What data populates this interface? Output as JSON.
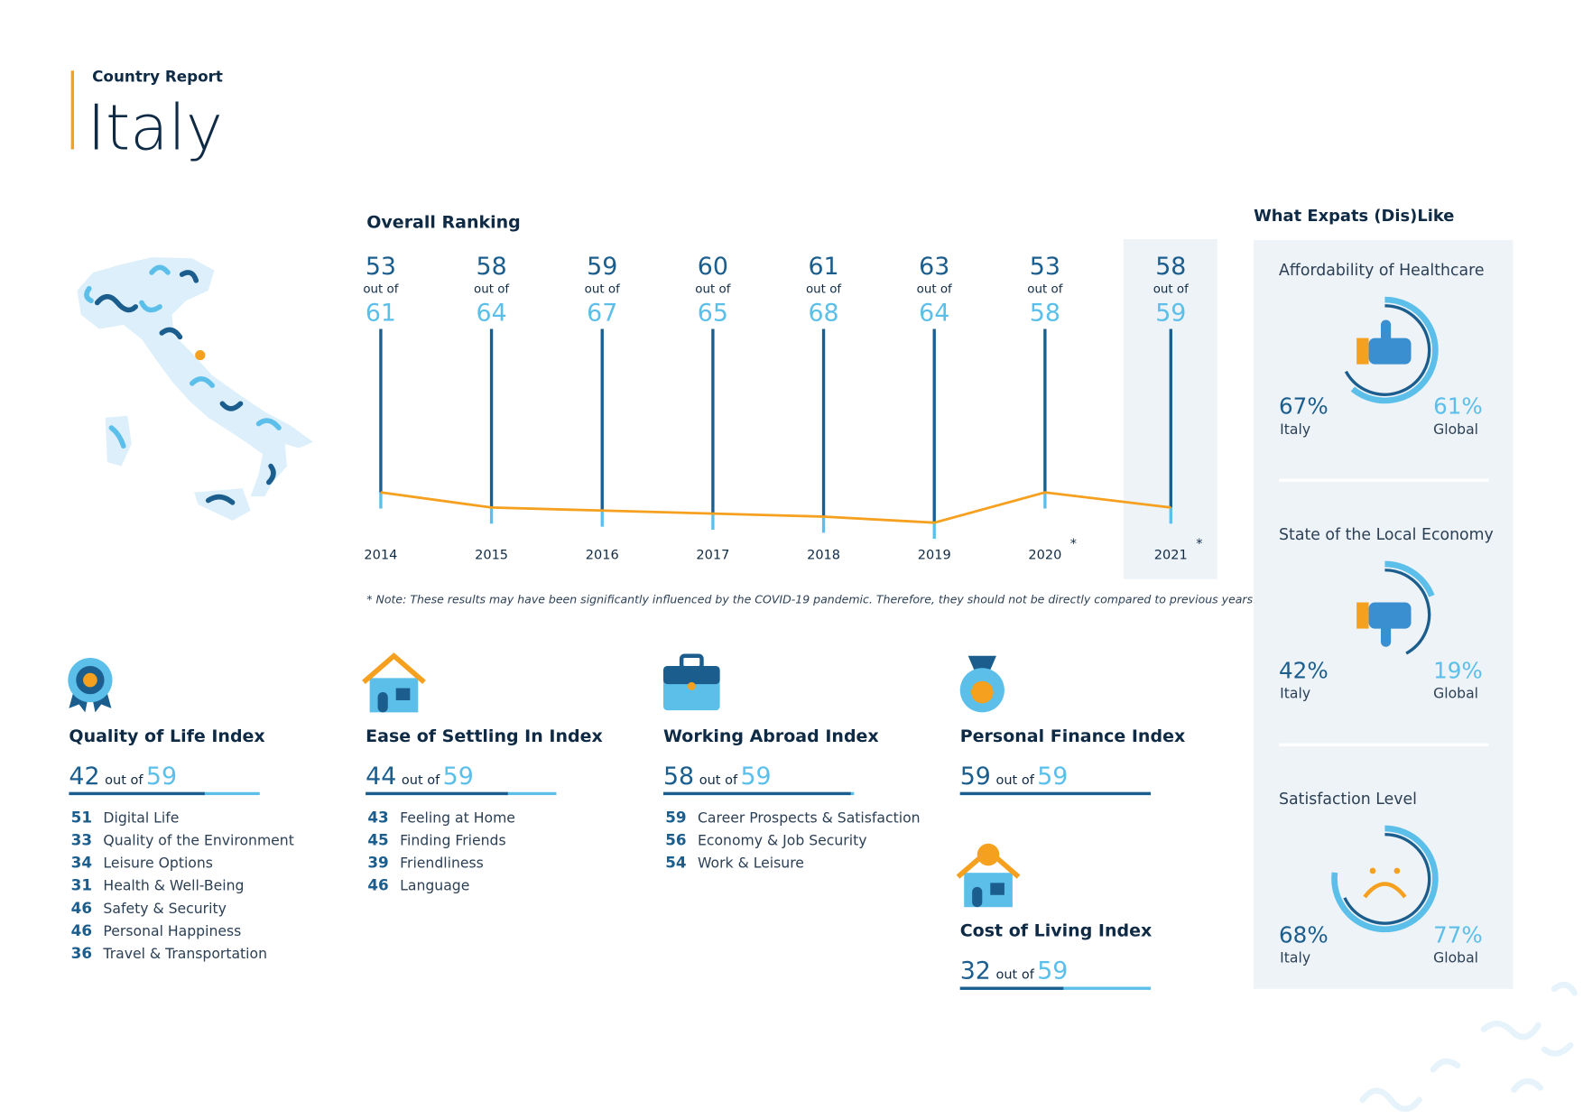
{
  "header": {
    "subtitle": "Country Report",
    "title": "Italy"
  },
  "labels": {
    "out_of": "out of",
    "italy": "Italy",
    "global": "Global"
  },
  "chart_data": {
    "type": "line",
    "title": "Overall Ranking",
    "categories": [
      "2014",
      "2015",
      "2016",
      "2017",
      "2018",
      "2019",
      "2020",
      "2021"
    ],
    "values": [
      53,
      58,
      59,
      60,
      61,
      63,
      53,
      58
    ],
    "totals": [
      61,
      64,
      67,
      65,
      68,
      64,
      58,
      59
    ],
    "markers": [
      null,
      null,
      null,
      null,
      null,
      null,
      "*",
      "*"
    ],
    "color": "#f5a01f",
    "note": "* Note: These results may have been significantly influenced by the COVID-19 pandemic. Therefore, they should not be directly compared to previous years."
  },
  "indices": [
    {
      "title": "Quality of Life Index",
      "rank": 42,
      "total": 59,
      "items": [
        {
          "rank": 51,
          "label": "Digital Life"
        },
        {
          "rank": 33,
          "label": "Quality of the Environment"
        },
        {
          "rank": 34,
          "label": "Leisure Options"
        },
        {
          "rank": 31,
          "label": "Health & Well-Being"
        },
        {
          "rank": 46,
          "label": "Safety & Security"
        },
        {
          "rank": 46,
          "label": "Personal Happiness"
        },
        {
          "rank": 36,
          "label": "Travel & Transportation"
        }
      ]
    },
    {
      "title": "Ease of Settling In Index",
      "rank": 44,
      "total": 59,
      "items": [
        {
          "rank": 43,
          "label": "Feeling at Home"
        },
        {
          "rank": 45,
          "label": "Finding Friends"
        },
        {
          "rank": 39,
          "label": "Friendliness"
        },
        {
          "rank": 46,
          "label": "Language"
        }
      ]
    },
    {
      "title": "Working Abroad Index",
      "rank": 58,
      "total": 59,
      "items": [
        {
          "rank": 59,
          "label": "Career Prospects & Satisfaction"
        },
        {
          "rank": 56,
          "label": "Economy & Job Security"
        },
        {
          "rank": 54,
          "label": "Work & Leisure"
        }
      ]
    },
    {
      "title": "Personal Finance Index",
      "rank": 59,
      "total": 59,
      "items": []
    },
    {
      "title": "Cost of Living Index",
      "rank": 32,
      "total": 59,
      "items": []
    }
  ],
  "likes": {
    "title": "What Expats (Dis)Like",
    "items": [
      {
        "title": "Affordability of Healthcare",
        "italy": {
          "value": 67,
          "label": "67%"
        },
        "global": {
          "value": 61,
          "label": "61%"
        }
      },
      {
        "title": "State of the Local Economy",
        "italy": {
          "value": 42,
          "label": "42%"
        },
        "global": {
          "value": 19,
          "label": "19%"
        }
      },
      {
        "title": "Satisfaction Level",
        "italy": {
          "value": 68,
          "label": "68%"
        },
        "global": {
          "value": 77,
          "label": "77%"
        }
      }
    ]
  }
}
